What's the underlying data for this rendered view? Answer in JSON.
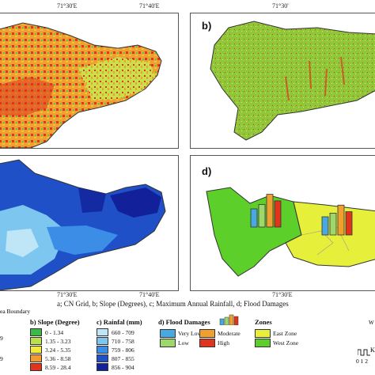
{
  "ticks": {
    "top_a_1": "71°30'E",
    "top_a_2": "71°40'E",
    "top_b_1": "71°30'",
    "bottom_c_1": "71°30'E",
    "bottom_c_2": "71°40'E",
    "bottom_d_1": "71°30'E"
  },
  "panels": {
    "b": "b)",
    "d": "d)"
  },
  "caption": "a; CN Grid, b; Slope (Degrees), c; Maximum Annual Rainfall, d; Flood Damages",
  "legend": {
    "partial_boundary": "ea Boundary",
    "partial_a1": "9",
    "partial_a2": "9",
    "slope": {
      "title": "b) Slope (Degree)",
      "items": [
        {
          "label": "0 - 1.34",
          "color": "#3cb84a"
        },
        {
          "label": "1.35 - 3.23",
          "color": "#b9e04a"
        },
        {
          "label": "3.24 - 5.35",
          "color": "#f2e93a"
        },
        {
          "label": "5.36 - 8.58",
          "color": "#f59a2f"
        },
        {
          "label": "8.59 - 28.4",
          "color": "#e0341f"
        }
      ]
    },
    "rainfall": {
      "title": "c) Rainfal (mm)",
      "items": [
        {
          "label": "660 - 709",
          "color": "#bfe6f7"
        },
        {
          "label": "710 - 758",
          "color": "#7cc6f0"
        },
        {
          "label": "759 - 806",
          "color": "#3c8de6"
        },
        {
          "label": "807 - 855",
          "color": "#1f50c8"
        },
        {
          "label": "856 - 904",
          "color": "#12209a"
        }
      ]
    },
    "flood": {
      "title": "d) Flood Damages",
      "items": [
        {
          "label": "Very Low",
          "color": "#4aa8e0"
        },
        {
          "label": "Low",
          "color": "#9ed86a"
        },
        {
          "label": "Moderate",
          "color": "#f0a030"
        },
        {
          "label": "High",
          "color": "#e0341f"
        }
      ]
    },
    "zones": {
      "title": "Zones",
      "items": [
        {
          "label": "East Zone",
          "color": "#e6f03a"
        },
        {
          "label": "West Zone",
          "color": "#5ccf2a"
        }
      ]
    },
    "partial_w": "W",
    "partial_scale_label": "K",
    "partial_scale_nums": "0 1 2"
  },
  "flood_bars": {
    "west": {
      "very_low": 0.5,
      "low": 0.62,
      "moderate": 0.9,
      "high": 0.72
    },
    "east": {
      "very_low": 0.5,
      "low": 0.6,
      "moderate": 0.82,
      "high": 0.64
    }
  }
}
